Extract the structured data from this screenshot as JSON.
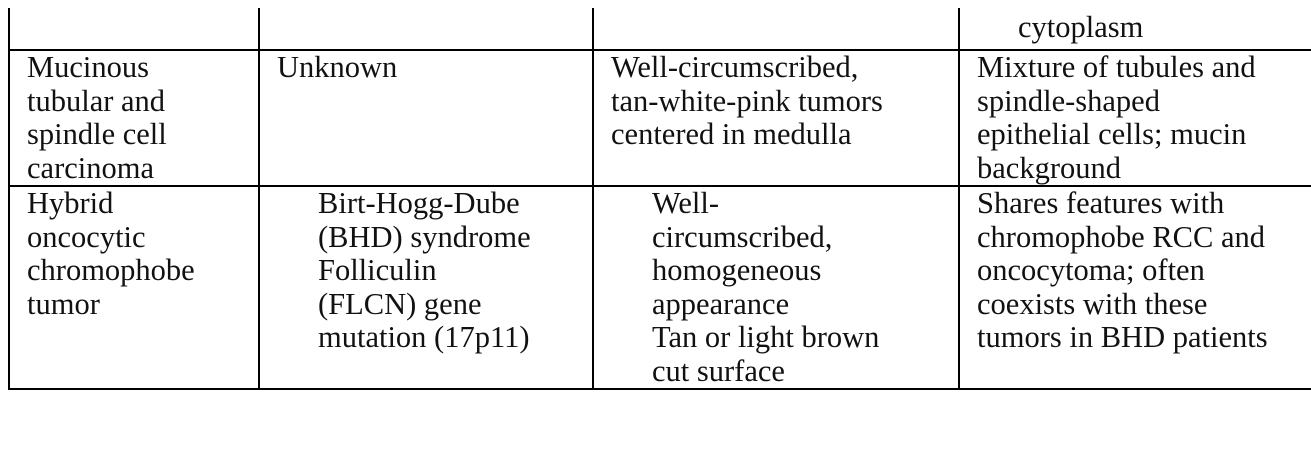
{
  "table": {
    "rows": [
      {
        "cells": [
          {
            "lines": []
          },
          {
            "lines": []
          },
          {
            "lines": []
          },
          {
            "lines": [
              "cytoplasm"
            ]
          }
        ]
      },
      {
        "cells": [
          {
            "lines": [
              "Mucinous",
              "tubular and",
              "spindle cell",
              "carcinoma"
            ]
          },
          {
            "lines": [
              "Unknown"
            ]
          },
          {
            "lines": [
              "Well-circumscribed,",
              "tan-white-pink tumors",
              "centered in medulla"
            ]
          },
          {
            "lines": [
              "Mixture of tubules and",
              "spindle-shaped",
              "epithelial cells; mucin",
              "background"
            ]
          }
        ]
      },
      {
        "cells": [
          {
            "lines": [
              "Hybrid",
              "oncocytic",
              "chromophobe",
              "tumor"
            ]
          },
          {
            "lines": [
              "Birt-Hogg-Dube",
              "(BHD) syndrome",
              "Folliculin",
              "(FLCN) gene",
              "mutation (17p11)"
            ]
          },
          {
            "lines": [
              "Well-",
              "circumscribed,",
              "homogeneous",
              "appearance",
              "Tan or light brown",
              "cut surface"
            ]
          },
          {
            "lines": [
              "Shares features with",
              "chromophobe RCC and",
              "oncocytoma; often",
              "coexists with these",
              "tumors in BHD patients"
            ]
          }
        ]
      }
    ]
  }
}
